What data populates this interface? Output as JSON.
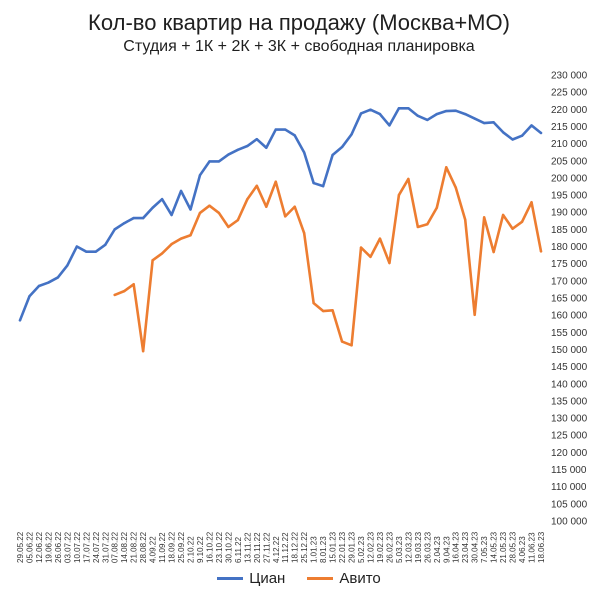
{
  "chart_data": {
    "type": "line",
    "title": "Кол-во квартир на продажу (Москва+МО)",
    "subtitle": "Студия + 1К + 2К + 3К + свободная планировка",
    "x": [
      "29.05.22",
      "05.06.22",
      "12.06.22",
      "19.06.22",
      "26.06.22",
      "03.07.22",
      "10.07.22",
      "17.07.22",
      "24.07.22",
      "31.07.22",
      "07.08.22",
      "14.08.22",
      "21.08.22",
      "28.08.22",
      "4.09.22",
      "11.09.22",
      "18.09.22",
      "25.09.22",
      "2.10.22",
      "9.10.22",
      "16.10.22",
      "23.10.22",
      "30.10.22",
      "6.11.22",
      "13.11.22",
      "20.11.22",
      "27.11.22",
      "4.12.22",
      "11.12.22",
      "18.12.22",
      "25.12.22",
      "1.01.23",
      "8.01.23",
      "15.01.23",
      "22.01.23",
      "29.01.23",
      "5.02.23",
      "12.02.23",
      "19.02.23",
      "26.02.23",
      "5.03.23",
      "12.03.23",
      "19.03.23",
      "26.03.23",
      "2.04.23",
      "9.04.23",
      "16.04.23",
      "23.04.23",
      "30.04.23",
      "7.05.23",
      "14.05.23",
      "21.05.23",
      "28.05.23",
      "4.06.23",
      "11.06.23",
      "18.06.23"
    ],
    "series": [
      {
        "name": "Циан",
        "color": "#4472C4",
        "values": [
          158500,
          165500,
          168500,
          169500,
          171000,
          174500,
          180000,
          178500,
          178500,
          180500,
          185000,
          186800,
          188300,
          188300,
          191300,
          193800,
          189200,
          196200,
          190800,
          200800,
          204800,
          204800,
          206800,
          208200,
          209300,
          211300,
          208800,
          214100,
          214100,
          212400,
          207400,
          198500,
          197600,
          206700,
          209000,
          212700,
          218800,
          219900,
          218600,
          215300,
          220300,
          220300,
          218100,
          216900,
          218600,
          219500,
          219600,
          218600,
          217300,
          216000,
          216200,
          213300,
          211200,
          212300,
          215300,
          213100
        ]
      },
      {
        "name": "Авито",
        "color": "#ED7D31",
        "values": [
          null,
          null,
          null,
          null,
          null,
          null,
          null,
          null,
          null,
          null,
          165900,
          167000,
          169000,
          149500,
          176000,
          178000,
          180700,
          182300,
          183300,
          189800,
          191900,
          189800,
          185700,
          187700,
          193800,
          197700,
          191600,
          198900,
          188800,
          191600,
          183900,
          163500,
          161200,
          161400,
          152300,
          151200,
          179700,
          177000,
          182300,
          175200,
          195000,
          199700,
          185700,
          186500,
          191300,
          203100,
          197200,
          187800,
          160100,
          188500,
          178400,
          189200,
          185200,
          187200,
          192900,
          178600
        ]
      }
    ],
    "ylim": [
      100000,
      230000
    ],
    "ystep": 5000,
    "y_tick_labels": [
      "100 000",
      "105 000",
      "110 000",
      "115 000",
      "120 000",
      "125 000",
      "130 000",
      "135 000",
      "140 000",
      "145 000",
      "150 000",
      "155 000",
      "160 000",
      "165 000",
      "170 000",
      "175 000",
      "180 000",
      "185 000",
      "190 000",
      "195 000",
      "200 000",
      "205 000",
      "210 000",
      "215 000",
      "220 000",
      "225 000",
      "230 000"
    ],
    "y_axis_side": "right",
    "grid": false,
    "legend_position": "bottom"
  }
}
